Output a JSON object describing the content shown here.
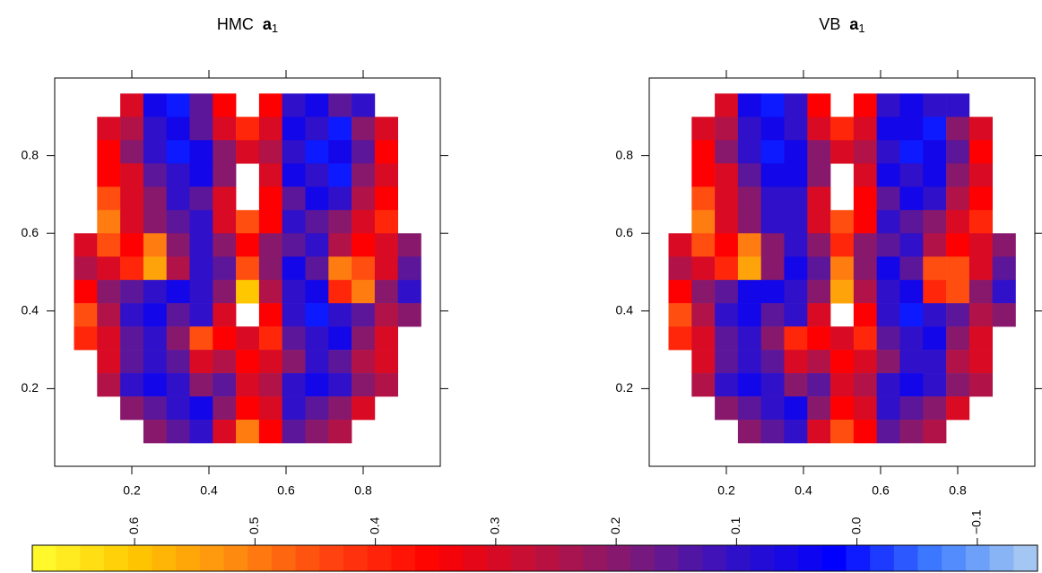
{
  "chart_data": [
    {
      "type": "heatmap",
      "title": "HMC",
      "title_symbol": "a",
      "title_subscript": "1",
      "xlim": [
        0,
        1
      ],
      "ylim": [
        0,
        1
      ],
      "xticks": [
        0.2,
        0.4,
        0.6,
        0.8
      ],
      "yticks": [
        0.2,
        0.4,
        0.6,
        0.8
      ],
      "x": [
        0.08,
        0.14,
        0.2,
        0.26,
        0.32,
        0.38,
        0.44,
        0.5,
        0.56,
        0.62,
        0.68,
        0.74,
        0.8,
        0.86,
        0.92
      ],
      "y": [
        0.93,
        0.87,
        0.81,
        0.75,
        0.69,
        0.63,
        0.57,
        0.51,
        0.45,
        0.39,
        0.33,
        0.27,
        0.21,
        0.15,
        0.09
      ],
      "z": [
        [
          null,
          null,
          0.3,
          0.05,
          0.0,
          0.15,
          0.35,
          null,
          0.35,
          0.1,
          0.05,
          0.15,
          0.1,
          null,
          null
        ],
        [
          null,
          0.3,
          0.25,
          0.1,
          0.05,
          0.15,
          0.3,
          0.4,
          0.3,
          0.05,
          0.1,
          0.0,
          0.2,
          0.3,
          null
        ],
        [
          null,
          0.35,
          0.2,
          0.1,
          0.0,
          0.05,
          0.2,
          0.3,
          0.25,
          0.1,
          0.0,
          0.05,
          0.15,
          0.35,
          null
        ],
        [
          null,
          0.35,
          0.3,
          0.15,
          0.1,
          0.05,
          0.2,
          null,
          0.3,
          0.05,
          0.1,
          0.0,
          0.2,
          0.3,
          null
        ],
        [
          null,
          0.45,
          0.3,
          0.2,
          0.1,
          0.15,
          0.3,
          null,
          0.35,
          0.15,
          0.05,
          0.1,
          0.25,
          0.35,
          null
        ],
        [
          null,
          0.5,
          0.3,
          0.2,
          0.15,
          0.1,
          0.3,
          0.45,
          0.35,
          0.1,
          0.15,
          0.2,
          0.3,
          0.4,
          null
        ],
        [
          0.3,
          0.45,
          0.35,
          0.5,
          0.2,
          0.1,
          0.2,
          0.35,
          0.2,
          0.15,
          0.1,
          0.25,
          0.35,
          0.3,
          0.2
        ],
        [
          0.25,
          0.3,
          0.4,
          0.55,
          0.25,
          0.1,
          0.15,
          0.45,
          0.2,
          0.05,
          0.15,
          0.5,
          0.45,
          0.3,
          0.15
        ],
        [
          0.35,
          0.2,
          0.15,
          0.1,
          0.05,
          0.1,
          0.2,
          0.6,
          0.25,
          0.1,
          0.05,
          0.4,
          0.5,
          0.2,
          0.1
        ],
        [
          0.45,
          0.25,
          0.1,
          0.05,
          0.15,
          0.1,
          0.3,
          null,
          0.35,
          0.1,
          0.0,
          0.1,
          0.15,
          0.25,
          0.2
        ],
        [
          0.4,
          0.3,
          0.15,
          0.1,
          0.2,
          0.45,
          0.35,
          0.3,
          0.4,
          0.15,
          0.1,
          0.05,
          0.2,
          0.3,
          null
        ],
        [
          null,
          0.3,
          0.15,
          0.1,
          0.15,
          0.3,
          0.25,
          0.35,
          0.3,
          0.2,
          0.1,
          0.15,
          0.25,
          0.3,
          null
        ],
        [
          null,
          0.25,
          0.1,
          0.05,
          0.1,
          0.2,
          0.15,
          0.3,
          0.25,
          0.1,
          0.05,
          0.1,
          0.2,
          0.25,
          null
        ],
        [
          null,
          null,
          0.2,
          0.15,
          0.1,
          0.05,
          0.2,
          0.35,
          0.3,
          0.1,
          0.15,
          0.2,
          0.3,
          null,
          null
        ],
        [
          null,
          null,
          null,
          0.2,
          0.15,
          0.1,
          0.3,
          0.5,
          0.35,
          0.15,
          0.2,
          0.25,
          null,
          null,
          null
        ]
      ]
    },
    {
      "type": "heatmap",
      "title": "VB",
      "title_symbol": "a",
      "title_subscript": "1",
      "xlim": [
        0,
        1
      ],
      "ylim": [
        0,
        1
      ],
      "xticks": [
        0.2,
        0.4,
        0.6,
        0.8
      ],
      "yticks": [
        0.2,
        0.4,
        0.6,
        0.8
      ],
      "x": [
        0.08,
        0.14,
        0.2,
        0.26,
        0.32,
        0.38,
        0.44,
        0.5,
        0.56,
        0.62,
        0.68,
        0.74,
        0.8,
        0.86,
        0.92
      ],
      "y": [
        0.93,
        0.87,
        0.81,
        0.75,
        0.69,
        0.63,
        0.57,
        0.51,
        0.45,
        0.39,
        0.33,
        0.27,
        0.21,
        0.15,
        0.09
      ],
      "z": [
        [
          null,
          null,
          0.3,
          0.05,
          0.0,
          0.1,
          0.35,
          null,
          0.35,
          0.1,
          0.05,
          0.1,
          0.1,
          null,
          null
        ],
        [
          null,
          0.3,
          0.25,
          0.1,
          0.05,
          0.1,
          0.3,
          0.4,
          0.3,
          0.05,
          0.05,
          0.0,
          0.2,
          0.3,
          null
        ],
        [
          null,
          0.35,
          0.2,
          0.1,
          0.0,
          0.05,
          0.2,
          0.3,
          0.25,
          0.1,
          0.0,
          0.05,
          0.15,
          0.35,
          null
        ],
        [
          null,
          0.35,
          0.3,
          0.15,
          0.05,
          0.05,
          0.2,
          null,
          0.3,
          0.05,
          0.1,
          0.05,
          0.2,
          0.3,
          null
        ],
        [
          null,
          0.45,
          0.3,
          0.2,
          0.1,
          0.1,
          0.3,
          null,
          0.35,
          0.15,
          0.05,
          0.1,
          0.25,
          0.35,
          null
        ],
        [
          null,
          0.5,
          0.3,
          0.2,
          0.1,
          0.1,
          0.3,
          0.45,
          0.35,
          0.1,
          0.15,
          0.2,
          0.3,
          0.4,
          null
        ],
        [
          0.3,
          0.45,
          0.35,
          0.5,
          0.2,
          0.1,
          0.2,
          0.4,
          0.2,
          0.15,
          0.1,
          0.25,
          0.35,
          0.3,
          0.2
        ],
        [
          0.25,
          0.3,
          0.4,
          0.55,
          0.2,
          0.05,
          0.15,
          0.5,
          0.2,
          0.05,
          0.15,
          0.45,
          0.45,
          0.3,
          0.15
        ],
        [
          0.35,
          0.2,
          0.15,
          0.05,
          0.05,
          0.1,
          0.2,
          0.55,
          0.25,
          0.1,
          0.05,
          0.4,
          0.45,
          0.2,
          0.1
        ],
        [
          0.45,
          0.25,
          0.1,
          0.05,
          0.15,
          0.1,
          0.3,
          null,
          0.35,
          0.1,
          0.0,
          0.1,
          0.15,
          0.25,
          0.2
        ],
        [
          0.4,
          0.3,
          0.15,
          0.1,
          0.2,
          0.4,
          0.35,
          0.3,
          0.4,
          0.15,
          0.1,
          0.05,
          0.2,
          0.3,
          null
        ],
        [
          null,
          0.3,
          0.15,
          0.1,
          0.15,
          0.3,
          0.25,
          0.35,
          0.3,
          0.2,
          0.1,
          0.1,
          0.25,
          0.3,
          null
        ],
        [
          null,
          0.25,
          0.1,
          0.05,
          0.1,
          0.2,
          0.15,
          0.3,
          0.25,
          0.1,
          0.05,
          0.1,
          0.2,
          0.25,
          null
        ],
        [
          null,
          null,
          0.2,
          0.15,
          0.1,
          0.05,
          0.2,
          0.35,
          0.3,
          0.1,
          0.15,
          0.2,
          0.3,
          null,
          null
        ],
        [
          null,
          null,
          null,
          0.2,
          0.15,
          0.1,
          0.3,
          0.45,
          0.35,
          0.15,
          0.2,
          0.25,
          null,
          null,
          null
        ]
      ]
    },
    {
      "type": "colorbar",
      "zlim": [
        0.685,
        -0.15
      ],
      "ticks": [
        0.6,
        0.5,
        0.4,
        0.3,
        0.2,
        0.1,
        {
          "value": 0,
          "label": "0.0"
        },
        {
          "value": -0.1,
          "label": "−0.1"
        }
      ],
      "colors": [
        "#ffff30",
        "#ffc800",
        "#ff8c10",
        "#ff4010",
        "#ff0000",
        "#c0103a",
        "#7a1a78",
        "#3010c8",
        "#0000ff",
        "#4080ff",
        "#b0d0f0"
      ]
    }
  ]
}
